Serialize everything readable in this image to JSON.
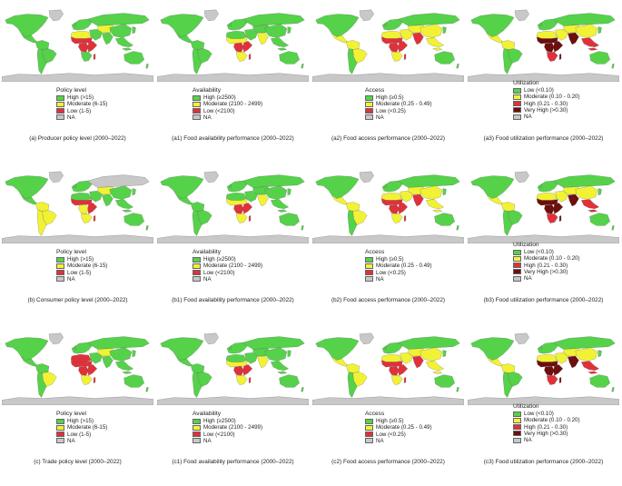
{
  "colors": {
    "ocean": "#ffffff",
    "na": "#c8c8c8",
    "green": "#55d24a",
    "yellow": "#f2f235",
    "red": "#e0313a",
    "darkred": "#6e0e0e",
    "ltgreen": "#9ae05a"
  },
  "legends": {
    "policy": {
      "title": "Policy level",
      "items": [
        {
          "label": "High (>15)",
          "color": "#55d24a"
        },
        {
          "label": "Moderate (6-15)",
          "color": "#f2f235"
        },
        {
          "label": "Low (1-5)",
          "color": "#e0313a"
        },
        {
          "label": "NA",
          "color": "#c8c8c8"
        }
      ]
    },
    "availability": {
      "title": "Availability",
      "items": [
        {
          "label": "High (≥2500)",
          "color": "#55d24a"
        },
        {
          "label": "Moderate (2100 - 2499)",
          "color": "#f2f235"
        },
        {
          "label": "Low (<2100)",
          "color": "#e0313a"
        },
        {
          "label": "NA",
          "color": "#c8c8c8"
        }
      ]
    },
    "access": {
      "title": "Access",
      "items": [
        {
          "label": "High (≥0.5)",
          "color": "#55d24a"
        },
        {
          "label": "Moderate (0.25 - 0.49)",
          "color": "#f2f235"
        },
        {
          "label": "Low (<0.25)",
          "color": "#e0313a"
        },
        {
          "label": "NA",
          "color": "#c8c8c8"
        }
      ]
    },
    "utilization": {
      "title": "Utilization",
      "items": [
        {
          "label": "Low (<0.10)",
          "color": "#55d24a"
        },
        {
          "label": "Moderate (0.10 - 0.20)",
          "color": "#f2f235"
        },
        {
          "label": "High (0.21 - 0.30)",
          "color": "#e0313a"
        },
        {
          "label": "Very High (>0.30)",
          "color": "#6e0e0e"
        },
        {
          "label": "NA",
          "color": "#c8c8c8"
        }
      ]
    }
  },
  "panels": [
    {
      "caption": "(a) Producer policy level (2000–2022)",
      "legend": "policy",
      "regions": {
        "north_america": "green",
        "greenland": "na",
        "mexico_central": "green",
        "south_america_n": "green",
        "brazil": "green",
        "south_america_s": "green",
        "europe": "green",
        "russia": "green",
        "north_africa": "yellow",
        "sahel": "red",
        "central_africa": "red",
        "east_africa": "red",
        "southern_africa": "green",
        "middle_east": "green",
        "central_asia": "yellow",
        "south_asia": "green",
        "china": "green",
        "southeast_asia": "green",
        "japan": "green",
        "australia": "green",
        "antarctica": "na"
      }
    },
    {
      "caption": "(a1) Food availability performance (2000–2022)",
      "legend": "availability",
      "regions": {
        "north_america": "green",
        "greenland": "na",
        "mexico_central": "green",
        "south_america_n": "green",
        "brazil": "green",
        "south_america_s": "green",
        "europe": "green",
        "russia": "green",
        "north_africa": "green",
        "sahel": "yellow",
        "central_africa": "red",
        "east_africa": "red",
        "southern_africa": "yellow",
        "middle_east": "green",
        "central_asia": "green",
        "south_asia": "yellow",
        "china": "green",
        "southeast_asia": "green",
        "japan": "green",
        "australia": "green",
        "antarctica": "na"
      }
    },
    {
      "caption": "(a2) Food access performance (2000–2022)",
      "legend": "access",
      "regions": {
        "north_america": "green",
        "greenland": "na",
        "mexico_central": "yellow",
        "south_america_n": "yellow",
        "brazil": "yellow",
        "south_america_s": "green",
        "europe": "green",
        "russia": "green",
        "north_africa": "yellow",
        "sahel": "red",
        "central_africa": "red",
        "east_africa": "red",
        "southern_africa": "yellow",
        "middle_east": "yellow",
        "central_asia": "yellow",
        "south_asia": "red",
        "china": "yellow",
        "southeast_asia": "yellow",
        "japan": "green",
        "australia": "green",
        "antarctica": "na"
      }
    },
    {
      "caption": "(a3) Food utilization performance (2000–2022)",
      "legend": "utilization",
      "regions": {
        "north_america": "green",
        "greenland": "na",
        "mexico_central": "yellow",
        "south_america_n": "yellow",
        "brazil": "green",
        "south_america_s": "green",
        "europe": "green",
        "russia": "green",
        "north_africa": "yellow",
        "sahel": "darkred",
        "central_africa": "darkred",
        "east_africa": "darkred",
        "southern_africa": "red",
        "middle_east": "yellow",
        "central_asia": "yellow",
        "south_asia": "darkred",
        "china": "yellow",
        "southeast_asia": "red",
        "japan": "green",
        "australia": "green",
        "antarctica": "na"
      }
    },
    {
      "caption": "(b) Consumer policy level (2000–2022)",
      "legend": "policy",
      "regions": {
        "north_america": "green",
        "greenland": "na",
        "mexico_central": "green",
        "south_america_n": "yellow",
        "brazil": "yellow",
        "south_america_s": "yellow",
        "europe": "green",
        "russia": "na",
        "north_africa": "green",
        "sahel": "red",
        "central_africa": "yellow",
        "east_africa": "red",
        "southern_africa": "yellow",
        "middle_east": "green",
        "central_asia": "yellow",
        "south_asia": "green",
        "china": "green",
        "southeast_asia": "green",
        "japan": "green",
        "australia": "green",
        "antarctica": "na"
      }
    },
    {
      "caption": "(b1) Food availability performance (2000–2022)",
      "legend": "availability",
      "regions": {
        "north_america": "green",
        "greenland": "na",
        "mexico_central": "green",
        "south_america_n": "green",
        "brazil": "green",
        "south_america_s": "green",
        "europe": "green",
        "russia": "green",
        "north_africa": "green",
        "sahel": "yellow",
        "central_africa": "red",
        "east_africa": "red",
        "southern_africa": "yellow",
        "middle_east": "green",
        "central_asia": "green",
        "south_asia": "yellow",
        "china": "green",
        "southeast_asia": "green",
        "japan": "green",
        "australia": "green",
        "antarctica": "na"
      }
    },
    {
      "caption": "(b2) Food access performance (2000–2022)",
      "legend": "access",
      "regions": {
        "north_america": "green",
        "greenland": "na",
        "mexico_central": "yellow",
        "south_america_n": "yellow",
        "brazil": "yellow",
        "south_america_s": "green",
        "europe": "green",
        "russia": "green",
        "north_africa": "yellow",
        "sahel": "red",
        "central_africa": "red",
        "east_africa": "red",
        "southern_africa": "yellow",
        "middle_east": "yellow",
        "central_asia": "yellow",
        "south_asia": "red",
        "china": "yellow",
        "southeast_asia": "yellow",
        "japan": "green",
        "australia": "green",
        "antarctica": "na"
      }
    },
    {
      "caption": "(b3) Food utilization performance (2000–2022)",
      "legend": "utilization",
      "regions": {
        "north_america": "green",
        "greenland": "na",
        "mexico_central": "yellow",
        "south_america_n": "yellow",
        "brazil": "green",
        "south_america_s": "green",
        "europe": "green",
        "russia": "green",
        "north_africa": "yellow",
        "sahel": "darkred",
        "central_africa": "darkred",
        "east_africa": "darkred",
        "southern_africa": "red",
        "middle_east": "yellow",
        "central_asia": "yellow",
        "south_asia": "darkred",
        "china": "yellow",
        "southeast_asia": "red",
        "japan": "green",
        "australia": "green",
        "antarctica": "na"
      }
    },
    {
      "caption": "(c) Trade policy level (2000–2022)",
      "legend": "policy",
      "regions": {
        "north_america": "green",
        "greenland": "na",
        "mexico_central": "green",
        "south_america_n": "green",
        "brazil": "yellow",
        "south_america_s": "green",
        "europe": "green",
        "russia": "green",
        "north_africa": "red",
        "sahel": "red",
        "central_africa": "red",
        "east_africa": "red",
        "southern_africa": "yellow",
        "middle_east": "green",
        "central_asia": "yellow",
        "south_asia": "green",
        "china": "green",
        "southeast_asia": "green",
        "japan": "green",
        "australia": "green",
        "antarctica": "na"
      }
    },
    {
      "caption": "(c1) Food availability performance (2000–2022)",
      "legend": "availability",
      "regions": {
        "north_america": "green",
        "greenland": "na",
        "mexico_central": "green",
        "south_america_n": "green",
        "brazil": "green",
        "south_america_s": "green",
        "europe": "green",
        "russia": "green",
        "north_africa": "green",
        "sahel": "yellow",
        "central_africa": "red",
        "east_africa": "red",
        "southern_africa": "yellow",
        "middle_east": "green",
        "central_asia": "green",
        "south_asia": "yellow",
        "china": "green",
        "southeast_asia": "green",
        "japan": "green",
        "australia": "green",
        "antarctica": "na"
      }
    },
    {
      "caption": "(c2) Food access performance (2000–2022)",
      "legend": "access",
      "regions": {
        "north_america": "green",
        "greenland": "na",
        "mexico_central": "yellow",
        "south_america_n": "yellow",
        "brazil": "yellow",
        "south_america_s": "green",
        "europe": "green",
        "russia": "green",
        "north_africa": "yellow",
        "sahel": "red",
        "central_africa": "red",
        "east_africa": "red",
        "southern_africa": "yellow",
        "middle_east": "yellow",
        "central_asia": "yellow",
        "south_asia": "red",
        "china": "yellow",
        "southeast_asia": "yellow",
        "japan": "green",
        "australia": "green",
        "antarctica": "na"
      }
    },
    {
      "caption": "(c3) Food utilization performance (2000–2022)",
      "legend": "utilization",
      "regions": {
        "north_america": "green",
        "greenland": "na",
        "mexico_central": "yellow",
        "south_america_n": "yellow",
        "brazil": "green",
        "south_america_s": "green",
        "europe": "green",
        "russia": "green",
        "north_africa": "yellow",
        "sahel": "darkred",
        "central_africa": "darkred",
        "east_africa": "darkred",
        "southern_africa": "red",
        "middle_east": "yellow",
        "central_asia": "yellow",
        "south_asia": "darkred",
        "china": "yellow",
        "southeast_asia": "red",
        "japan": "green",
        "australia": "green",
        "antarctica": "na"
      }
    }
  ]
}
